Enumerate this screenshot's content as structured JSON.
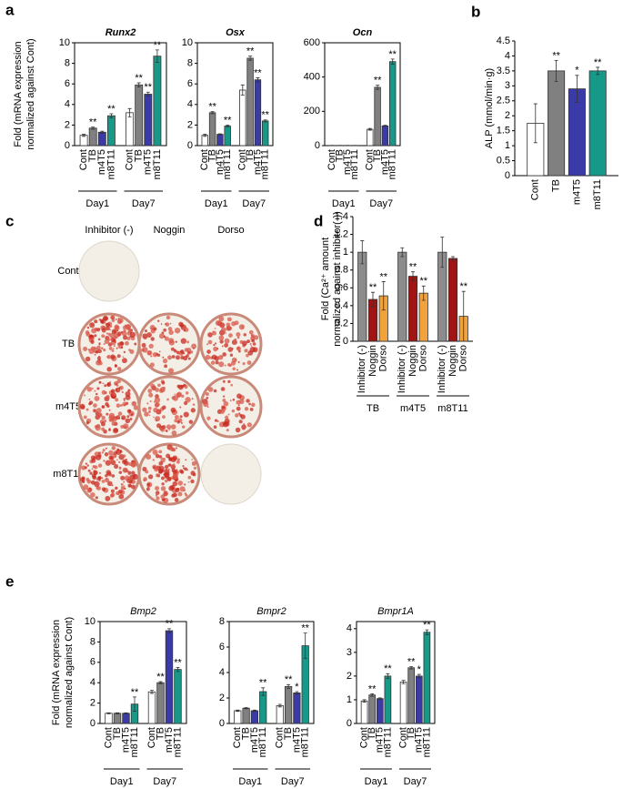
{
  "panels": [
    {
      "label": "a"
    },
    {
      "label": "b"
    },
    {
      "label": "c"
    },
    {
      "label": "d"
    },
    {
      "label": "e"
    }
  ],
  "image_panel": {
    "columns": [
      "Inhibitor (-)",
      "Noggin",
      "Dorso"
    ],
    "rows": [
      "Cont",
      "TB",
      "m4T5",
      "m8T11"
    ]
  },
  "chart_data": [
    {
      "type": "bar",
      "title": "Runx2",
      "ylabel": [
        "Fold (mRNA expression",
        "normalized against Cont)"
      ],
      "frame": true,
      "categories": [
        "Day1",
        "Day7"
      ],
      "ylim": [
        0,
        10
      ],
      "yticks": [
        0,
        2,
        4,
        6,
        8,
        10
      ],
      "series": [
        {
          "name": "Cont",
          "color": "#ffffff",
          "values": [
            1.0,
            3.2
          ],
          "errors": [
            0.1,
            0.4
          ],
          "marks": [
            null,
            null
          ]
        },
        {
          "name": "TB",
          "color": "#808080",
          "values": [
            1.7,
            5.9
          ],
          "errors": [
            0.1,
            0.2
          ],
          "marks": [
            "**",
            "**"
          ]
        },
        {
          "name": "m4T5",
          "color": "#3a3aa8",
          "values": [
            1.3,
            5.0
          ],
          "errors": [
            0.1,
            0.2
          ],
          "marks": [
            null,
            "**"
          ]
        },
        {
          "name": "m8T11",
          "color": "#17998a",
          "values": [
            2.9,
            8.7
          ],
          "errors": [
            0.2,
            0.6
          ],
          "marks": [
            "**",
            "**"
          ]
        }
      ]
    },
    {
      "type": "bar",
      "title": "Osx",
      "frame": true,
      "categories": [
        "Day1",
        "Day7"
      ],
      "ylim": [
        0,
        10
      ],
      "yticks": [
        0,
        2,
        4,
        6,
        8,
        10
      ],
      "series": [
        {
          "name": "Cont",
          "color": "#ffffff",
          "values": [
            1.0,
            5.4
          ],
          "errors": [
            0.1,
            0.5
          ],
          "marks": [
            null,
            null
          ]
        },
        {
          "name": "TB",
          "color": "#808080",
          "values": [
            3.2,
            8.5
          ],
          "errors": [
            0.1,
            0.2
          ],
          "marks": [
            "**",
            "**"
          ]
        },
        {
          "name": "m4T5",
          "color": "#3a3aa8",
          "values": [
            1.1,
            6.4
          ],
          "errors": [
            0.05,
            0.2
          ],
          "marks": [
            null,
            "**"
          ]
        },
        {
          "name": "m8T11",
          "color": "#17998a",
          "values": [
            1.9,
            2.4
          ],
          "errors": [
            0.1,
            0.1
          ],
          "marks": [
            "**",
            "**"
          ]
        }
      ]
    },
    {
      "type": "bar",
      "title": "Ocn",
      "frame": true,
      "categories": [
        "Day1",
        "Day7"
      ],
      "ylim": [
        0,
        600
      ],
      "yticks": [
        0,
        200,
        400,
        600
      ],
      "series": [
        {
          "name": "Cont",
          "color": "#ffffff",
          "values": [
            1,
            95
          ],
          "errors": [
            0,
            5
          ],
          "marks": [
            null,
            null
          ]
        },
        {
          "name": "TB",
          "color": "#808080",
          "values": [
            1,
            340
          ],
          "errors": [
            0,
            12
          ],
          "marks": [
            null,
            "**"
          ]
        },
        {
          "name": "m4T5",
          "color": "#3a3aa8",
          "values": [
            1,
            115
          ],
          "errors": [
            0,
            4
          ],
          "marks": [
            null,
            null
          ]
        },
        {
          "name": "m8T11",
          "color": "#17998a",
          "values": [
            1,
            490
          ],
          "errors": [
            0,
            15
          ],
          "marks": [
            null,
            "**"
          ]
        }
      ]
    },
    {
      "type": "bar",
      "ylabel": [
        "ALP (mmol/min·g)"
      ],
      "frame": false,
      "categories": [
        "Cont",
        "TB",
        "m4T5",
        "m8T11"
      ],
      "values": [
        1.75,
        3.5,
        2.9,
        3.5
      ],
      "errors": [
        0.65,
        0.35,
        0.45,
        0.12
      ],
      "marks": [
        null,
        "**",
        "*",
        "**"
      ],
      "colors": [
        "#ffffff",
        "#808080",
        "#3a3aa8",
        "#17998a"
      ],
      "ylim": [
        0,
        4.5
      ],
      "yticks": [
        0,
        0.5,
        1,
        1.5,
        2,
        2.5,
        3,
        3.5,
        4,
        4.5
      ]
    },
    {
      "type": "bar",
      "ylabel": [
        "Fold (Ca²⁺ amount",
        "normalized against inhibitor(-))"
      ],
      "frame": false,
      "categories": [
        "TB",
        "m4T5",
        "m8T11"
      ],
      "ylim": [
        0,
        1.4
      ],
      "yticks": [
        0,
        0.2,
        0.4,
        0.6,
        0.8,
        1,
        1.2,
        1.4
      ],
      "series": [
        {
          "name": "Inhibitor (-)",
          "color": "#8c8c8c",
          "values": [
            1.0,
            1.0,
            1.0
          ],
          "errors": [
            0.13,
            0.05,
            0.17
          ],
          "marks": [
            null,
            null,
            null
          ]
        },
        {
          "name": "Noggin",
          "color": "#a01414",
          "values": [
            0.47,
            0.73,
            0.93
          ],
          "errors": [
            0.08,
            0.05,
            0.02
          ],
          "marks": [
            "**",
            "**",
            null
          ]
        },
        {
          "name": "Dorso",
          "color": "#f2a23a",
          "values": [
            0.51,
            0.54,
            0.28
          ],
          "errors": [
            0.16,
            0.08,
            0.28
          ],
          "marks": [
            "**",
            "**",
            "**"
          ]
        }
      ]
    },
    {
      "type": "bar",
      "title": "Bmp2",
      "ylabel": [
        "Fold (mRNA expression",
        "normalized against Cont)"
      ],
      "frame": true,
      "categories": [
        "Day1",
        "Day7"
      ],
      "ylim": [
        0,
        10
      ],
      "yticks": [
        0,
        2,
        4,
        6,
        8,
        10
      ],
      "series": [
        {
          "name": "Cont",
          "color": "#ffffff",
          "values": [
            1.0,
            3.1
          ],
          "errors": [
            0.05,
            0.15
          ],
          "marks": [
            null,
            null
          ]
        },
        {
          "name": "TB",
          "color": "#808080",
          "values": [
            1.0,
            4.0
          ],
          "errors": [
            0.05,
            0.1
          ],
          "marks": [
            null,
            "**"
          ]
        },
        {
          "name": "m4T5",
          "color": "#3a3aa8",
          "values": [
            1.0,
            9.1
          ],
          "errors": [
            0.05,
            0.2
          ],
          "marks": [
            null,
            "**"
          ]
        },
        {
          "name": "m8T11",
          "color": "#17998a",
          "values": [
            1.9,
            5.3
          ],
          "errors": [
            0.7,
            0.2
          ],
          "marks": [
            "**",
            "**"
          ]
        }
      ]
    },
    {
      "type": "bar",
      "title": "Bmpr2",
      "frame": true,
      "categories": [
        "Day1",
        "Day7"
      ],
      "ylim": [
        0,
        8
      ],
      "yticks": [
        0,
        2,
        4,
        6,
        8
      ],
      "series": [
        {
          "name": "Cont",
          "color": "#ffffff",
          "values": [
            1.0,
            1.4
          ],
          "errors": [
            0.05,
            0.1
          ],
          "marks": [
            null,
            null
          ]
        },
        {
          "name": "TB",
          "color": "#808080",
          "values": [
            1.2,
            2.9
          ],
          "errors": [
            0.05,
            0.15
          ],
          "marks": [
            null,
            "**"
          ]
        },
        {
          "name": "m4T5",
          "color": "#3a3aa8",
          "values": [
            1.0,
            2.4
          ],
          "errors": [
            0.05,
            0.1
          ],
          "marks": [
            null,
            "*"
          ]
        },
        {
          "name": "m8T11",
          "color": "#17998a",
          "values": [
            2.5,
            6.1
          ],
          "errors": [
            0.3,
            1.0
          ],
          "marks": [
            "**",
            "**"
          ]
        }
      ]
    },
    {
      "type": "bar",
      "title": "Bmpr1A",
      "frame": true,
      "categories": [
        "Day1",
        "Day7"
      ],
      "ylim": [
        0,
        4.3
      ],
      "yticks": [
        0,
        1,
        2,
        3,
        4
      ],
      "series": [
        {
          "name": "Cont",
          "color": "#ffffff",
          "values": [
            0.95,
            1.75
          ],
          "errors": [
            0.05,
            0.07
          ],
          "marks": [
            null,
            null
          ]
        },
        {
          "name": "TB",
          "color": "#808080",
          "values": [
            1.2,
            2.35
          ],
          "errors": [
            0.05,
            0.05
          ],
          "marks": [
            "**",
            "**"
          ]
        },
        {
          "name": "m4T5",
          "color": "#3a3aa8",
          "values": [
            1.05,
            2.0
          ],
          "errors": [
            0.03,
            0.07
          ],
          "marks": [
            null,
            "*"
          ]
        },
        {
          "name": "m8T11",
          "color": "#17998a",
          "values": [
            2.0,
            3.85
          ],
          "errors": [
            0.1,
            0.1
          ],
          "marks": [
            "**",
            "**"
          ]
        }
      ]
    }
  ]
}
